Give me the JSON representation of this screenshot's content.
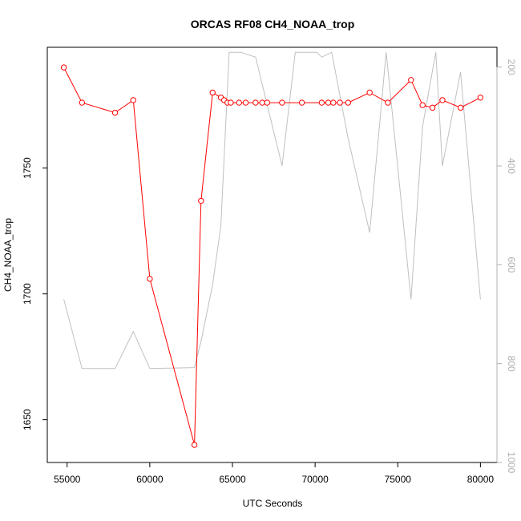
{
  "chart_data": {
    "type": "line",
    "title": "ORCAS RF08 CH4_NOAA_trop",
    "xlabel": "UTC Seconds",
    "ylabel": "CH4_NOAA_trop",
    "xlim": [
      53800,
      81000
    ],
    "ylim": [
      1633,
      1798
    ],
    "x_ticks": [
      55000,
      60000,
      65000,
      70000,
      75000,
      80000
    ],
    "y_ticks": [
      1650,
      1700,
      1750
    ],
    "y2_lim": [
      1000,
      160
    ],
    "y2_ticks": [
      200,
      400,
      600,
      800,
      1000
    ],
    "grid": false,
    "series": [
      {
        "color": "#ff0000",
        "marker": "open-circle",
        "x": [
          54800,
          55900,
          57900,
          59000,
          60000,
          62700,
          63100,
          63800,
          64300,
          64500,
          64700,
          64900,
          65400,
          65800,
          66400,
          66800,
          67100,
          68000,
          69200,
          70400,
          70800,
          71100,
          71500,
          72000,
          73300,
          74400,
          75800,
          76500,
          77100,
          77700,
          78800,
          80000
        ],
        "values": [
          1790,
          1776,
          1772,
          1777,
          1706,
          1640,
          1737,
          1780,
          1778,
          1777,
          1776,
          1776,
          1776,
          1776,
          1776,
          1776,
          1776,
          1776,
          1776,
          1776,
          1776,
          1776,
          1776,
          1776,
          1780,
          1776,
          1785,
          1775,
          1774,
          1777,
          1774,
          1778
        ]
      },
      {
        "color": "#c0c0c0",
        "axis": "right",
        "x": [
          54800,
          55900,
          57900,
          59000,
          60000,
          62700,
          63100,
          63800,
          64300,
          64800,
          65500,
          66400,
          68000,
          68800,
          70100,
          70400,
          71000,
          72000,
          73300,
          74300,
          75800,
          76500,
          77300,
          77700,
          78800,
          80000
        ],
        "values": [
          670,
          810,
          810,
          735,
          810,
          808,
          755,
          640,
          520,
          170,
          170,
          180,
          400,
          170,
          170,
          180,
          170,
          345,
          535,
          170,
          670,
          320,
          170,
          400,
          210,
          670
        ]
      }
    ]
  }
}
